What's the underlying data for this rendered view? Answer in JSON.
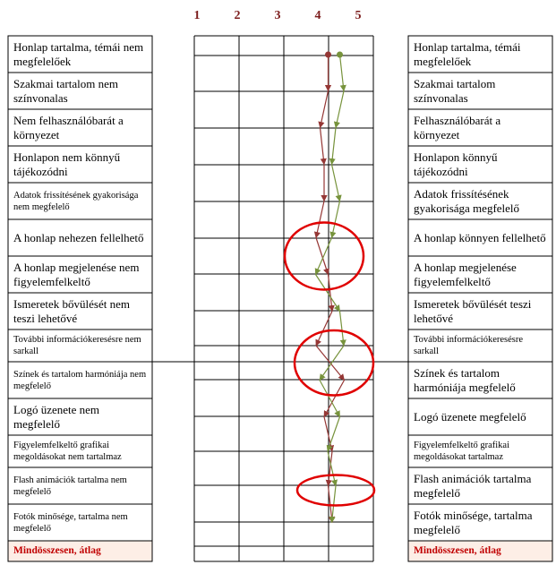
{
  "chart_data": {
    "type": "line",
    "scale": {
      "ticks": [
        "1",
        "2",
        "3",
        "4",
        "5"
      ],
      "min": 1,
      "max": 5
    },
    "rows": [
      {
        "left": "Honlap tartalma, témái nem megfelelőek",
        "right": "Honlap tartalma, témái megfelelőek",
        "small": false
      },
      {
        "left": "Szakmai tartalom nem színvonalas",
        "right": "Szakmai tartalom színvonalas",
        "small": false
      },
      {
        "left": "Nem felhasználóbarát a környezet",
        "right": "Felhasználóbarát a környezet",
        "small": false
      },
      {
        "left": "Honlapon nem könnyű tájékozódni",
        "right": "Honlapon könnyű tájékozódni",
        "small": false
      },
      {
        "left": "Adatok frissítésének gyakorisága nem megfelelő",
        "right": "Adatok frissítésének gyakorisága megfelelő",
        "small": false,
        "small_left": true
      },
      {
        "left": "A honlap nehezen fellelhető",
        "right": "A honlap könnyen fellelhető",
        "small": false
      },
      {
        "left": "A honlap megjelenése nem figyelemfelkeltő",
        "right": "A honlap megjelenése figyelemfelkeltő",
        "small": false
      },
      {
        "left": "Ismeretek bővülését nem teszi lehetővé",
        "right": "Ismeretek bővülését teszi lehetővé",
        "small": false
      },
      {
        "left": "További információkeresésre nem sarkall",
        "right": "További információkeresésre sarkall",
        "small": true
      },
      {
        "left": "Színek és tartalom harmóniája nem megfelelő",
        "right": "Színek és tartalom harmóniája megfelelő",
        "small": false,
        "small_left": true
      },
      {
        "left": "Logó üzenete nem megfelelő",
        "right": "Logó üzenete megfelelő",
        "small": false
      },
      {
        "left": "Figyelemfelkeltő grafikai megoldásokat nem tartalmaz",
        "right": "Figyelemfelkeltő grafikai megoldásokat tartalmaz",
        "small": true
      },
      {
        "left": "Flash animációk tartalma nem megfelelő",
        "right": "Flash animációk tartalma megfelelő",
        "small": false,
        "small_left": true
      },
      {
        "left": "Fotók minősége, tartalma nem megfelelő",
        "right": "Fotók minősége, tartalma megfelelő",
        "small": false,
        "small_left": true
      }
    ],
    "total_label": "Mindösszesen, átlag",
    "series": [
      {
        "color": "#953735",
        "values": [
          4.3,
          4.3,
          4.1,
          4.2,
          4.2,
          4.0,
          4.3,
          4.4,
          4.0,
          4.7,
          4.2,
          4.4,
          4.3,
          4.4
        ]
      },
      {
        "color": "#77933c",
        "values": [
          4.5,
          4.6,
          4.4,
          4.3,
          4.5,
          4.3,
          3.9,
          4.5,
          4.6,
          4.0,
          4.5,
          4.2,
          4.4,
          4.3
        ]
      }
    ],
    "annotations": [
      {
        "shape": "ellipse",
        "color": "#e00000",
        "rows": [
          5,
          6
        ]
      },
      {
        "shape": "ellipse",
        "color": "#e00000",
        "rows": [
          8,
          9
        ]
      },
      {
        "shape": "ellipse",
        "color": "#e00000",
        "rows": [
          12,
          12
        ]
      }
    ]
  }
}
